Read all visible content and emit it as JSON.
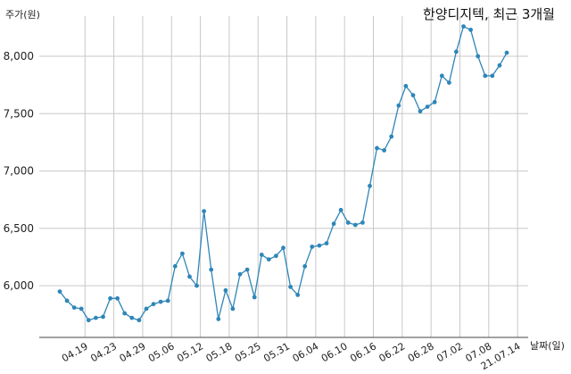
{
  "chart_data": {
    "type": "line",
    "title": "한양디지텍, 최근 3개월",
    "ylabel": "주가(원)",
    "xlabel": "날짜(일)",
    "ylim": [
      5550,
      8350
    ],
    "y_ticks": [
      6000,
      6500,
      7000,
      7500,
      8000
    ],
    "y_tick_labels": [
      "6,000",
      "6,500",
      "7,000",
      "7,500",
      "8,000"
    ],
    "x_tick_labels": [
      "04.19",
      "04.23",
      "04.29",
      "05.06",
      "05.12",
      "05.18",
      "05.25",
      "05.31",
      "06.04",
      "06.10",
      "06.16",
      "06.22",
      "06.28",
      "07.02",
      "07.08",
      "21.07.14"
    ],
    "x_tick_positions": [
      3.5,
      7.5,
      11.5,
      15.5,
      19.5,
      23.5,
      27.5,
      31.5,
      35.5,
      39.5,
      43.5,
      47.5,
      51.5,
      55.5,
      59.5,
      63.5
    ],
    "grid": true,
    "line_color": "#2e86b8",
    "series": [
      {
        "values": [
          5950,
          5870,
          5810,
          5800,
          5700,
          5720,
          5730,
          5890,
          5890,
          5760,
          5720,
          5700,
          5800,
          5840,
          5860,
          5870,
          6170,
          6280,
          6080,
          6000,
          6650,
          6140,
          5710,
          5960,
          5800,
          6100,
          6140,
          5900,
          6270,
          6230,
          6260,
          6330,
          5990,
          5920,
          6170,
          6340,
          6350,
          6370,
          6540,
          6660,
          6550,
          6530,
          6550,
          6870,
          7200,
          7180,
          7300,
          7570,
          7740,
          7660,
          7520,
          7560,
          7600,
          7830,
          7770,
          8040,
          8260,
          8230,
          8000,
          7830,
          7830,
          7920,
          8030
        ]
      }
    ]
  }
}
